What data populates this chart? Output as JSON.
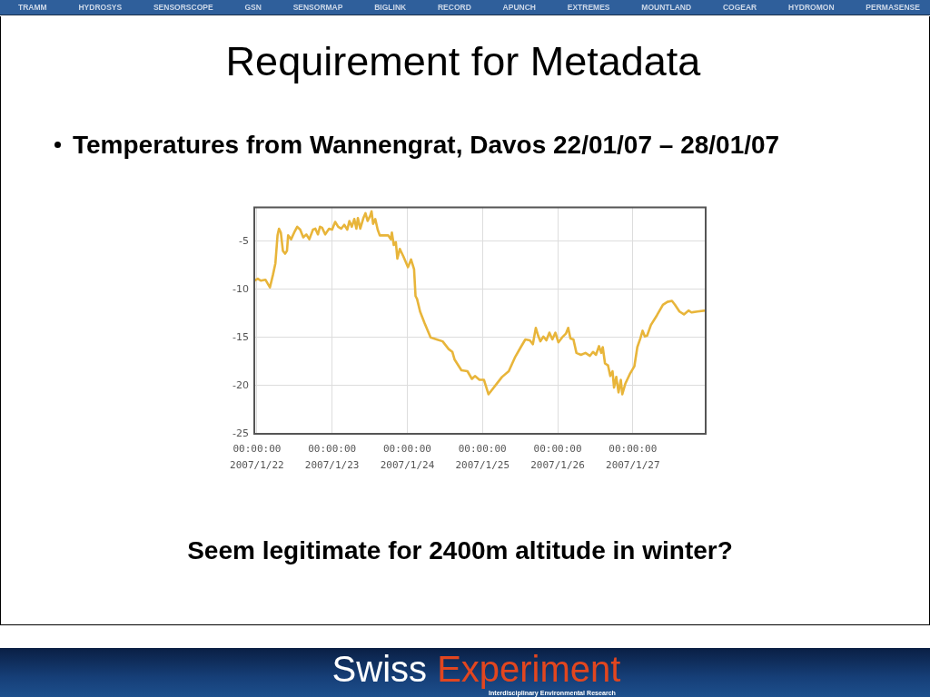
{
  "chart_data": {
    "type": "line",
    "title": "Requirement for Metadata",
    "subtitle": "Temperatures from Wannengrat, Davos 22/01/07 – 28/01/07",
    "annotations": [
      "Seem legitimate for 2400m altitude in winter?",
      "TRAMM",
      "HYDROSYS",
      "SENSORSCOPE",
      "GSN",
      "SENSORMAP",
      "BIGLINK",
      "RECORD",
      "APUNCH",
      "EXTREMES",
      "MOUNTLAND",
      "COGEAR",
      "HYDROMON",
      "PERMASENSE",
      "Swiss Experiment",
      "Interdisciplinary Environmental Research"
    ],
    "x": [
      "2007-01-21T23:10",
      "2007-01-22T00:17",
      "2007-01-22T01:15",
      "2007-01-22T02:43",
      "2007-01-22T04:09",
      "2007-01-22T05:07",
      "2007-01-22T05:54",
      "2007-01-22T06:35",
      "2007-01-22T07:03",
      "2007-01-22T07:38",
      "2007-01-22T08:18",
      "2007-01-22T09:00",
      "2007-01-22T09:36",
      "2007-01-22T09:58",
      "2007-01-22T10:55",
      "2007-01-22T11:54",
      "2007-01-22T12:52",
      "2007-01-22T13:49",
      "2007-01-22T14:48",
      "2007-01-22T15:46",
      "2007-01-22T16:44",
      "2007-01-22T17:54",
      "2007-01-22T18:40",
      "2007-01-22T19:28",
      "2007-01-22T20:08",
      "2007-01-22T20:48",
      "2007-01-22T21:48",
      "2007-01-22T23:02",
      "2007-01-23T00:00",
      "2007-01-23T00:59",
      "2007-01-23T01:57",
      "2007-01-23T02:54",
      "2007-01-23T03:53",
      "2007-01-23T04:51",
      "2007-01-23T05:31",
      "2007-01-23T06:17",
      "2007-01-23T07:05",
      "2007-01-23T07:45",
      "2007-01-23T08:14",
      "2007-01-23T09:00",
      "2007-01-23T09:59",
      "2007-01-23T10:39",
      "2007-01-23T11:20",
      "2007-01-23T12:07",
      "2007-01-23T12:36",
      "2007-01-23T13:05",
      "2007-01-23T13:47",
      "2007-01-23T14:33",
      "2007-01-23T15:13",
      "2007-01-23T16:28",
      "2007-01-23T17:55",
      "2007-01-23T18:43",
      "2007-01-23T19:05",
      "2007-01-23T19:41",
      "2007-01-23T20:21",
      "2007-01-23T20:50",
      "2007-01-23T21:37",
      "2007-01-23T22:47",
      "2007-01-24T00:14",
      "2007-01-24T01:12",
      "2007-01-24T02:10",
      "2007-01-24T02:38",
      "2007-01-24T03:07",
      "2007-01-24T04:05",
      "2007-01-24T05:31",
      "2007-01-24T07:26",
      "2007-01-24T09:22",
      "2007-01-24T11:17",
      "2007-01-24T13:12",
      "2007-01-24T14:24",
      "2007-01-24T15:07",
      "2007-01-24T17:17",
      "2007-01-24T19:12",
      "2007-01-24T20:38",
      "2007-01-24T21:36",
      "2007-01-24T23:02",
      "2007-01-25T00:29",
      "2007-01-25T01:55",
      "2007-01-25T02:53",
      "2007-01-25T04:19",
      "2007-01-25T06:14",
      "2007-01-25T08:24",
      "2007-01-25T10:19",
      "2007-01-25T12:14",
      "2007-01-25T13:41",
      "2007-01-25T15:07",
      "2007-01-25T16:05",
      "2007-01-25T17:02",
      "2007-01-25T17:46",
      "2007-01-25T18:29",
      "2007-01-25T19:26",
      "2007-01-25T20:24",
      "2007-01-25T21:22",
      "2007-01-25T22:19",
      "2007-01-25T23:17",
      "2007-01-26T00:14",
      "2007-01-26T01:41",
      "2007-01-26T02:38",
      "2007-01-26T03:22",
      "2007-01-26T04:05",
      "2007-01-26T05:02",
      "2007-01-26T06:00",
      "2007-01-26T07:26",
      "2007-01-26T08:53",
      "2007-01-26T10:19",
      "2007-01-26T11:17",
      "2007-01-26T12:14",
      "2007-01-26T13:12",
      "2007-01-26T13:55",
      "2007-01-26T14:24",
      "2007-01-26T15:07",
      "2007-01-26T16:05",
      "2007-01-26T16:48",
      "2007-01-26T17:31",
      "2007-01-26T18:00",
      "2007-01-26T18:43",
      "2007-01-26T19:26",
      "2007-01-26T20:10",
      "2007-01-26T20:38",
      "2007-01-26T21:36",
      "2007-01-26T23:02",
      "2007-01-27T00:29",
      "2007-01-27T01:26",
      "2007-01-27T02:24",
      "2007-01-27T03:07",
      "2007-01-27T03:50",
      "2007-01-27T04:34",
      "2007-01-27T05:46",
      "2007-01-27T07:41",
      "2007-01-27T09:36",
      "2007-01-27T11:02",
      "2007-01-27T12:29",
      "2007-01-27T13:26",
      "2007-01-27T14:53",
      "2007-01-27T16:19",
      "2007-01-27T17:46",
      "2007-01-27T18:43",
      "2007-01-27T20:38",
      "2007-01-27T23:15"
    ],
    "values": [
      -9.1,
      -8.9,
      -9.1,
      -9.0,
      -9.8,
      -8.5,
      -7.3,
      -4.4,
      -3.7,
      -4.1,
      -6.0,
      -6.3,
      -6.0,
      -4.4,
      -4.8,
      -4.1,
      -3.5,
      -3.8,
      -4.6,
      -4.3,
      -4.8,
      -3.8,
      -3.7,
      -4.3,
      -3.5,
      -3.6,
      -4.3,
      -3.7,
      -3.8,
      -3.0,
      -3.5,
      -3.7,
      -3.3,
      -3.8,
      -2.9,
      -3.5,
      -2.7,
      -3.7,
      -2.6,
      -3.7,
      -2.6,
      -2.1,
      -2.9,
      -2.4,
      -1.9,
      -3.2,
      -2.7,
      -3.8,
      -4.4,
      -4.4,
      -4.4,
      -4.8,
      -4.1,
      -5.4,
      -5.1,
      -6.8,
      -5.8,
      -6.6,
      -7.7,
      -6.9,
      -7.9,
      -10.7,
      -11.0,
      -12.3,
      -13.5,
      -15.0,
      -15.2,
      -15.4,
      -16.2,
      -16.5,
      -17.3,
      -18.4,
      -18.5,
      -19.3,
      -19.0,
      -19.4,
      -19.4,
      -20.9,
      -20.5,
      -19.9,
      -19.1,
      -18.5,
      -17.1,
      -16.0,
      -15.2,
      -15.3,
      -15.7,
      -14.0,
      -14.8,
      -15.4,
      -14.9,
      -15.3,
      -14.5,
      -15.2,
      -14.5,
      -15.5,
      -14.9,
      -14.6,
      -14.0,
      -15.1,
      -15.2,
      -16.6,
      -16.8,
      -16.6,
      -16.9,
      -16.5,
      -16.8,
      -15.9,
      -16.6,
      -16.0,
      -17.7,
      -17.9,
      -19.0,
      -18.5,
      -20.2,
      -19.1,
      -20.7,
      -19.4,
      -20.9,
      -19.8,
      -18.8,
      -18.0,
      -16.0,
      -15.1,
      -14.3,
      -14.9,
      -14.8,
      -13.7,
      -12.7,
      -11.6,
      -11.3,
      -11.2,
      -11.6,
      -12.3,
      -12.6,
      -12.2,
      -12.4,
      -12.3,
      -12.2
    ],
    "color": "#e8b53a",
    "marker": "none",
    "grid": true,
    "xlim": [
      "2007-01-21T23:10",
      "2007-01-27T23:15"
    ],
    "xticks": [
      {
        "value": "2007-01-22",
        "label": "00:00:00\n2007/1/22"
      },
      {
        "value": "2007-01-23",
        "label": "00:00:00\n2007/1/23"
      },
      {
        "value": "2007-01-24",
        "label": "00:00:00\n2007/1/24"
      },
      {
        "value": "2007-01-25",
        "label": "00:00:00\n2007/1/25"
      },
      {
        "value": "2007-01-26",
        "label": "00:00:00\n2007/1/26"
      },
      {
        "value": "2007-01-27",
        "label": "00:00:00\n2007/1/27"
      }
    ],
    "ylim": [
      -25,
      -1.5
    ],
    "yticks": [
      -5,
      -10,
      -15,
      -20,
      -25
    ]
  }
}
